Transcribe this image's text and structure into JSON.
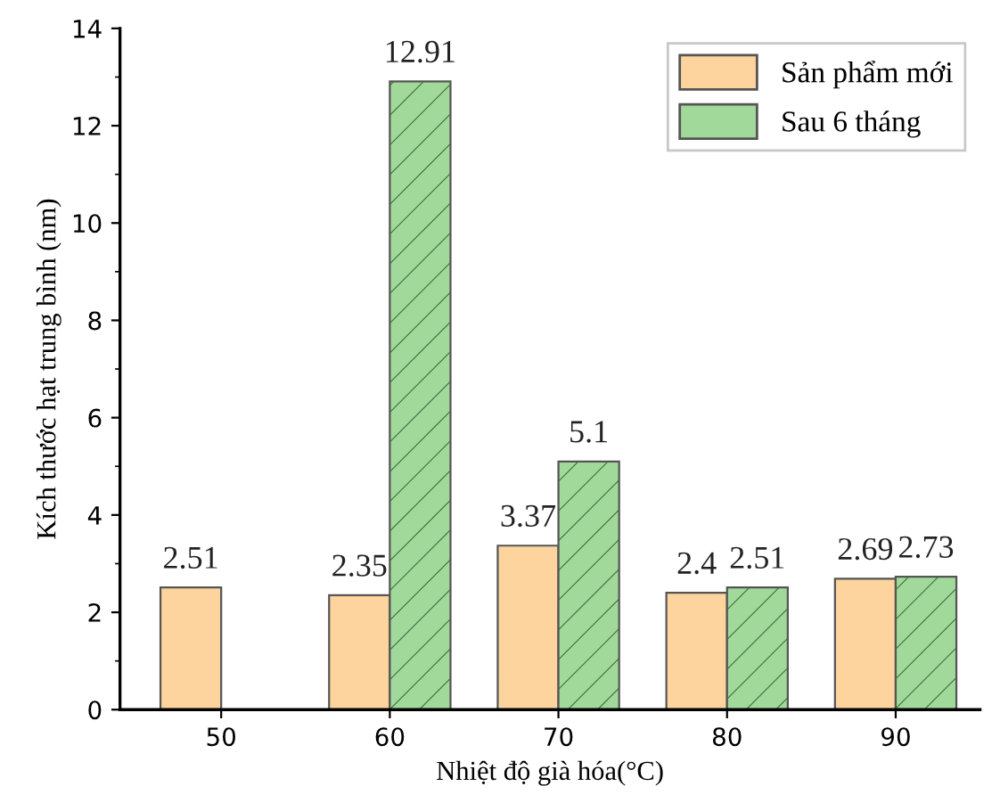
{
  "chart_data": {
    "type": "bar",
    "xlabel": "Nhiệt độ già hóa(°C)",
    "ylabel": "Kích thước hạt trung bình (nm)",
    "categories": [
      "50",
      "60",
      "70",
      "80",
      "90"
    ],
    "series": [
      {
        "name": "Sản phẩm mới",
        "color": "#fdd49e",
        "values": [
          2.51,
          2.35,
          3.37,
          2.4,
          2.69
        ]
      },
      {
        "name": "Sau 6 tháng",
        "color": "#a1d99b",
        "values": [
          null,
          12.91,
          5.1,
          2.51,
          2.73
        ]
      }
    ],
    "ylim": [
      0,
      14
    ],
    "yticks": [
      0,
      2,
      4,
      6,
      8,
      10,
      12,
      14
    ],
    "data_labels": true,
    "legend": "top right",
    "grid": false
  }
}
